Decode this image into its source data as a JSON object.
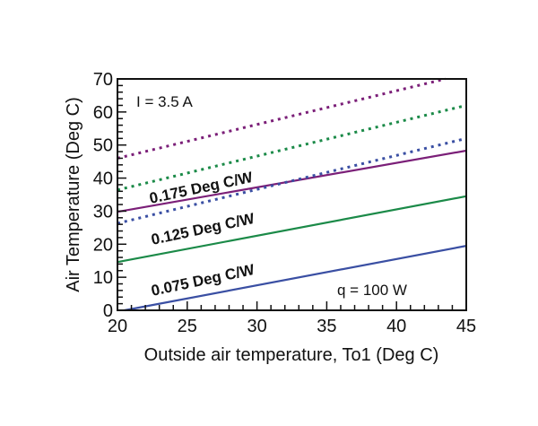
{
  "chart_data": {
    "type": "line",
    "title": "",
    "xlabel": "Outside air temperature, To1 (Deg  C)",
    "ylabel": "Air Temperature (Deg C)",
    "xlim": [
      20,
      45
    ],
    "ylim": [
      0,
      70
    ],
    "xticks": [
      20,
      25,
      30,
      35,
      40,
      45
    ],
    "yticks": [
      0,
      10,
      20,
      30,
      40,
      50,
      60,
      70
    ],
    "grid": false,
    "series": [
      {
        "name": "0.075 Deg C/W solid",
        "color": "#3a4fa3",
        "style": "solid",
        "x": [
          20.5,
          45
        ],
        "y": [
          0,
          19.5
        ]
      },
      {
        "name": "0.125 Deg C/W solid",
        "color": "#1b8a48",
        "style": "solid",
        "x": [
          20,
          45
        ],
        "y": [
          14.6,
          34.5
        ]
      },
      {
        "name": "0.175 Deg C/W solid",
        "color": "#7b1f78",
        "style": "solid",
        "x": [
          20,
          45
        ],
        "y": [
          29.8,
          48.3
        ]
      },
      {
        "name": "0.075 Deg C/W dotted",
        "color": "#3a4fa3",
        "style": "dotted",
        "x": [
          20,
          45
        ],
        "y": [
          26.3,
          52
        ]
      },
      {
        "name": "0.125 Deg C/W dotted",
        "color": "#1b8a48",
        "style": "dotted",
        "x": [
          20,
          45
        ],
        "y": [
          36.4,
          62
        ]
      },
      {
        "name": "0.175 Deg C/W dotted",
        "color": "#7b1f78",
        "style": "dotted",
        "x": [
          20,
          43.5
        ],
        "y": [
          46,
          70
        ]
      }
    ],
    "annotations": [
      {
        "text": "I = 3.5 A"
      },
      {
        "text": "q = 100 W"
      },
      {
        "text": "0.175 Deg C/W"
      },
      {
        "text": "0.125 Deg C/W"
      },
      {
        "text": "0.075 Deg C/W"
      }
    ]
  }
}
